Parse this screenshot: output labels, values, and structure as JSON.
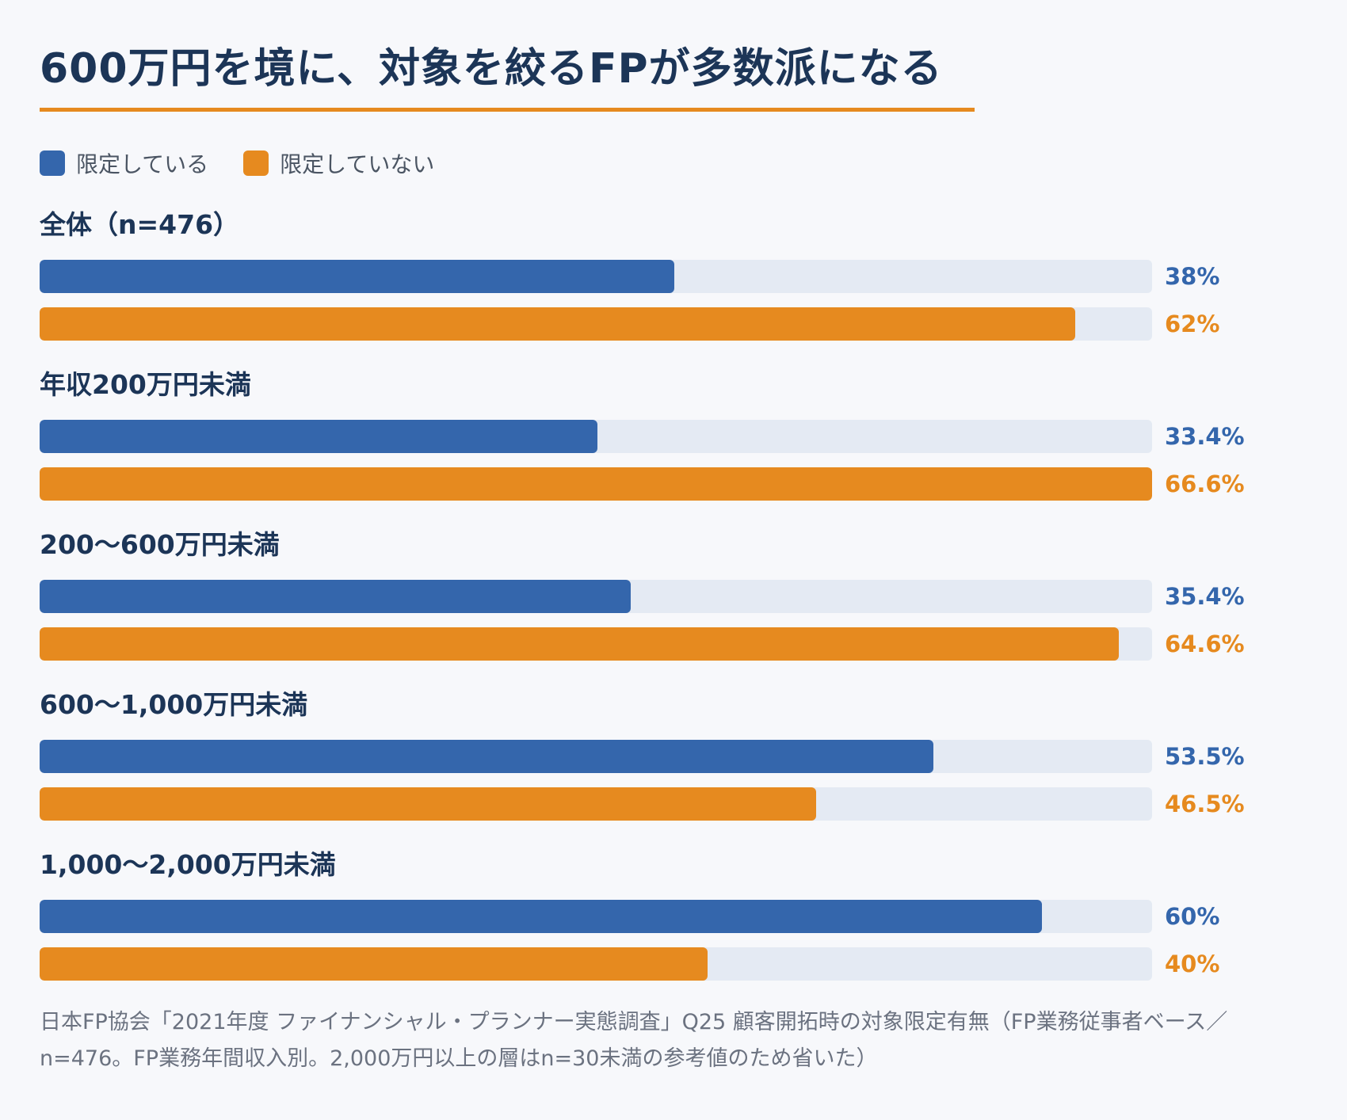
{
  "chart_data": {
    "type": "bar",
    "orientation": "horizontal",
    "title": "600万円を境に、対象を絞るFPが多数派になる",
    "categories": [
      "全体（n=476）",
      "年収200万円未満",
      "200〜600万円未満",
      "600〜1,000万円未満",
      "1,000〜2,000万円未満"
    ],
    "series": [
      {
        "name": "限定している",
        "values": [
          38,
          33.4,
          35.4,
          53.5,
          60
        ],
        "labels": [
          "38%",
          "33.4%",
          "35.4%",
          "53.5%",
          "60%"
        ]
      },
      {
        "name": "限定していない",
        "values": [
          62,
          66.6,
          64.6,
          46.5,
          40
        ],
        "labels": [
          "62%",
          "66.6%",
          "64.6%",
          "46.5%",
          "40%"
        ]
      }
    ],
    "xlim": [
      0,
      66.6
    ],
    "legend": "top-left",
    "grid": false,
    "source": "日本FP協会「2021年度 ファイナンシャル・プランナー実態調査」Q25 顧客開拓時の対象限定有無（FP業務従事者ベース／n=476。FP業務年間収入別。2,000万円以上の層はn=30未満の参考値のため省いた）"
  },
  "colors": {
    "limited": "#3466ac",
    "not_limited": "#e68a1f",
    "track": "#e4eaf3",
    "accent_rule": "#e68a1f"
  }
}
